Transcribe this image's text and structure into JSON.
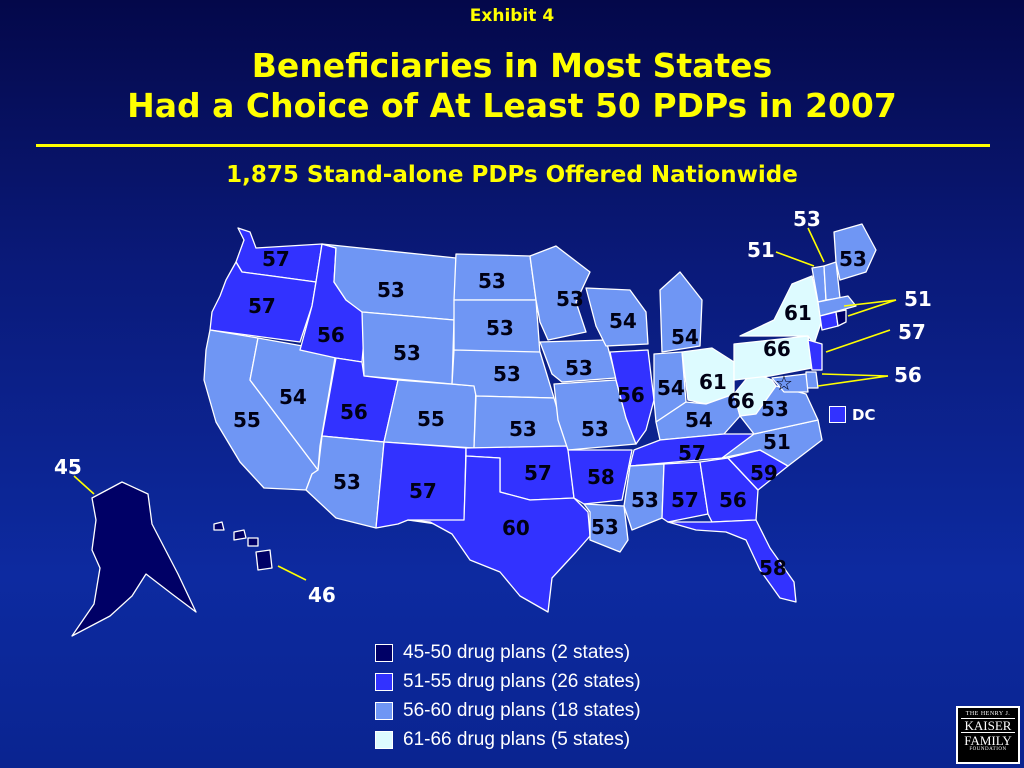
{
  "header": {
    "exhibit": "Exhibit 4",
    "title_line1": "Beneficiaries in Most States",
    "title_line2": "Had a Choice of At Least 50 PDPs in 2007",
    "subtitle": "1,875 Stand-alone PDPs Offered Nationwide"
  },
  "colors": {
    "tier_45_50": "#000066",
    "tier_51_55": "#3232ff",
    "tier_56_60": "#6f96f4",
    "tier_61_66": "#ddfbff",
    "accent": "#ffff00"
  },
  "states": {
    "WA": "57",
    "OR": "57",
    "CA": "55",
    "NV": "54",
    "ID": "56",
    "MT": "53",
    "WY": "53",
    "UT": "56",
    "CO": "55",
    "AZ": "53",
    "NM": "57",
    "ND": "53",
    "SD": "53",
    "NE": "53",
    "KS": "53",
    "OK": "57",
    "TX": "60",
    "MN": "53",
    "IA": "53",
    "MO": "53",
    "AR": "58",
    "LA": "53",
    "WI": "54",
    "IL": "56",
    "MI": "54",
    "IN": "54",
    "OH": "61",
    "KY": "54",
    "TN": "57",
    "MS": "53",
    "AL": "57",
    "GA": "56",
    "FL": "58",
    "SC": "59",
    "NC": "51",
    "VA": "53",
    "WV": "66",
    "PA": "66",
    "NY": "61",
    "ME": "53",
    "VT": "51",
    "NH": "53",
    "MA": "51",
    "CT": "57",
    "NJ": "56",
    "AK": "45",
    "HI": "46",
    "DC": "DC"
  },
  "legend": [
    {
      "label": "45-50 drug plans (2 states)",
      "color": "#000066"
    },
    {
      "label": "51-55 drug plans (26 states)",
      "color": "#3232ff"
    },
    {
      "label": "56-60 drug plans (18 states)",
      "color": "#6f96f4"
    },
    {
      "label": "61-66 drug plans (5 states)",
      "color": "#ddfbff"
    }
  ],
  "logo": {
    "line1": "THE HENRY J.",
    "line2": "KAISER",
    "line3": "FAMILY",
    "line4": "FOUNDATION"
  }
}
